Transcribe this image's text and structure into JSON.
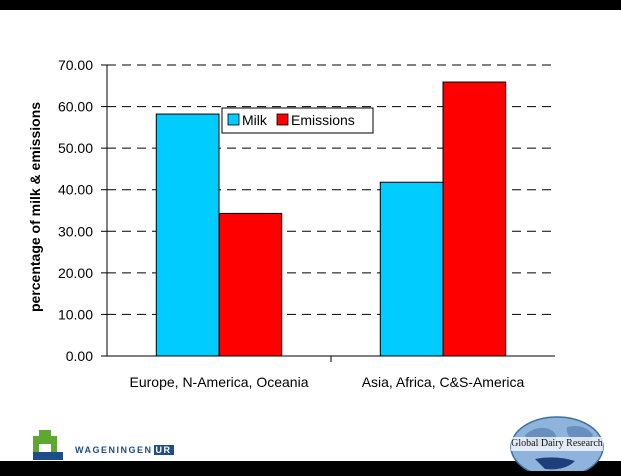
{
  "chart_data": {
    "type": "bar",
    "categories": [
      "Europe, N-America, Oceania",
      "Asia, Africa, C&S-America"
    ],
    "series": [
      {
        "name": "Milk",
        "values": [
          58.2,
          41.8
        ],
        "color": "#00ccff"
      },
      {
        "name": "Emissions",
        "values": [
          34.3,
          65.9
        ],
        "color": "#ff0000"
      }
    ],
    "title": "",
    "xlabel": "",
    "ylabel": "percentage of milk & emissions",
    "ylim": [
      0,
      70
    ],
    "y_ticks": [
      "0.00",
      "10.00",
      "20.00",
      "30.00",
      "40.00",
      "50.00",
      "60.00",
      "70.00"
    ],
    "grid": "dashed horizontal",
    "legend_position": "top-center"
  },
  "logos": {
    "wageningen": {
      "text": "WAGENINGEN",
      "ur": "UR",
      "color": "#1e4d8c",
      "accent": "#5ea832"
    },
    "global_dairy": {
      "text": "Global Dairy Research"
    }
  }
}
